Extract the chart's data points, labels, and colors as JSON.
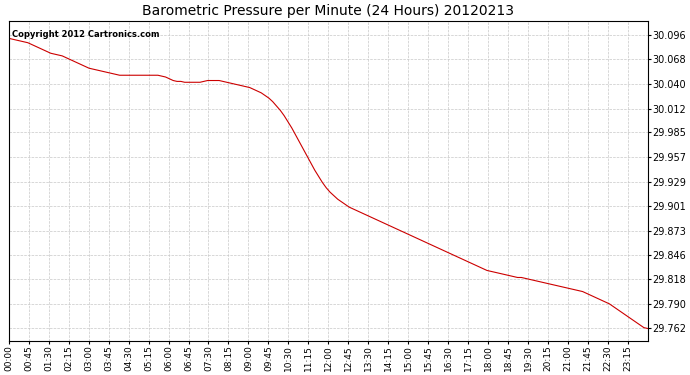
{
  "title": "Barometric Pressure per Minute (24 Hours) 20120213",
  "copyright": "Copyright 2012 Cartronics.com",
  "line_color": "#cc0000",
  "background_color": "#ffffff",
  "plot_bg_color": "#ffffff",
  "grid_color": "#c8c8c8",
  "grid_style": "--",
  "yticks": [
    29.762,
    29.79,
    29.818,
    29.846,
    29.873,
    29.901,
    29.929,
    29.957,
    29.985,
    30.012,
    30.04,
    30.068,
    30.096
  ],
  "ylim": [
    29.748,
    30.112
  ],
  "xtick_labels": [
    "00:00",
    "00:45",
    "01:30",
    "02:15",
    "03:00",
    "03:45",
    "04:30",
    "05:15",
    "06:00",
    "06:45",
    "07:30",
    "08:15",
    "09:00",
    "09:45",
    "10:30",
    "11:15",
    "12:00",
    "12:45",
    "13:30",
    "14:15",
    "15:00",
    "15:45",
    "16:30",
    "17:15",
    "18:00",
    "18:45",
    "19:30",
    "20:15",
    "21:00",
    "21:45",
    "22:30",
    "23:15"
  ],
  "pressure_curve": [
    30.092,
    30.091,
    30.09,
    30.089,
    30.088,
    30.087,
    30.085,
    30.083,
    30.081,
    30.079,
    30.077,
    30.075,
    30.074,
    30.073,
    30.072,
    30.07,
    30.068,
    30.066,
    30.064,
    30.062,
    30.06,
    30.058,
    30.057,
    30.056,
    30.055,
    30.054,
    30.053,
    30.052,
    30.051,
    30.05,
    30.05,
    30.05,
    30.05,
    30.05,
    30.05,
    30.05,
    30.05,
    30.05,
    30.05,
    30.05,
    30.049,
    30.048,
    30.046,
    30.044,
    30.043,
    30.043,
    30.042,
    30.042,
    30.042,
    30.042,
    30.042,
    30.043,
    30.044,
    30.044,
    30.044,
    30.044,
    30.043,
    30.042,
    30.041,
    30.04,
    30.039,
    30.038,
    30.037,
    30.036,
    30.034,
    30.032,
    30.03,
    30.027,
    30.024,
    30.02,
    30.015,
    30.01,
    30.004,
    29.997,
    29.99,
    29.982,
    29.974,
    29.966,
    29.958,
    29.95,
    29.942,
    29.935,
    29.928,
    29.922,
    29.917,
    29.913,
    29.909,
    29.906,
    29.903,
    29.9,
    29.898,
    29.896,
    29.894,
    29.892,
    29.89,
    29.888,
    29.886,
    29.884,
    29.882,
    29.88,
    29.878,
    29.876,
    29.874,
    29.872,
    29.87,
    29.868,
    29.866,
    29.864,
    29.862,
    29.86,
    29.858,
    29.856,
    29.854,
    29.852,
    29.85,
    29.848,
    29.846,
    29.844,
    29.842,
    29.84,
    29.838,
    29.836,
    29.834,
    29.832,
    29.83,
    29.828,
    29.827,
    29.826,
    29.825,
    29.824,
    29.823,
    29.822,
    29.821,
    29.82,
    29.82,
    29.819,
    29.818,
    29.817,
    29.816,
    29.815,
    29.814,
    29.813,
    29.812,
    29.811,
    29.81,
    29.809,
    29.808,
    29.807,
    29.806,
    29.805,
    29.804,
    29.802,
    29.8,
    29.798,
    29.796,
    29.794,
    29.792,
    29.79,
    29.787,
    29.784,
    29.781,
    29.778,
    29.775,
    29.772,
    29.769,
    29.766,
    29.763,
    29.762
  ]
}
